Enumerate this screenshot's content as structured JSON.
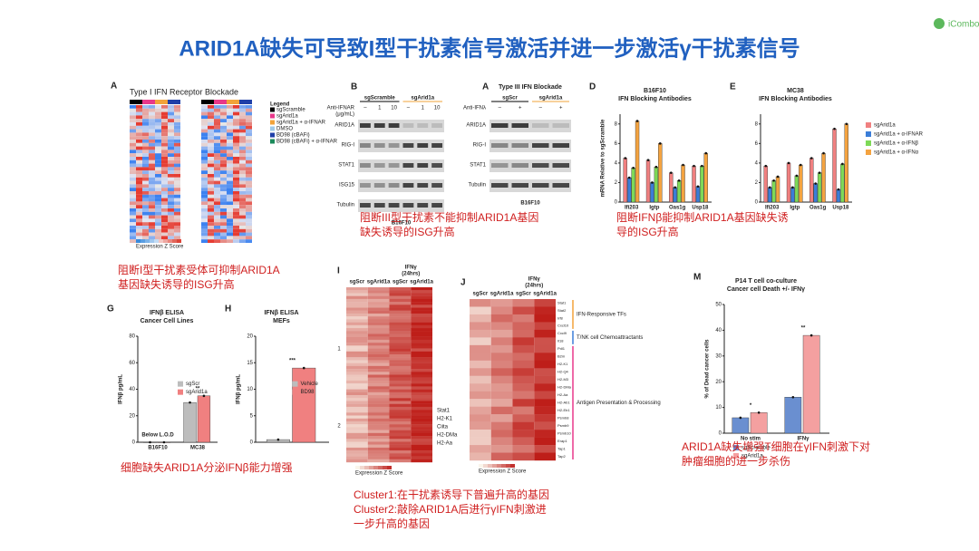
{
  "title": "ARID1A缺失可导致I型干扰素信号激活并进一步激活γ干扰素信号",
  "logo": "iCombo",
  "panelA": {
    "letter": "A",
    "title": "Type I IFN Receptor Blockade",
    "legend_title": "Legend",
    "legend": [
      "sgScramble",
      "sgArid1a",
      "sgArid1a + α-IFNAR",
      "DMSO",
      "BD98 (cBAFi)",
      "BD98 (cBAFi) + α-IFNAR"
    ],
    "legend_colors": [
      "#000000",
      "#e8388a",
      "#f2a33a",
      "#9ec9e8",
      "#1f3fa8",
      "#1a8a5a"
    ],
    "scale_label": "Expression Z Score",
    "caption": [
      "阻断I型干扰素受体可抑制ARID1A",
      "基因缺失诱导的ISG升高"
    ]
  },
  "panelB": {
    "letter": "B",
    "groups": [
      "sgScramble",
      "sgArid1a"
    ],
    "treatment": "Anti-IFNAR",
    "unit": "(μg/mL)",
    "doses": [
      "–",
      "1",
      "10",
      "–",
      "1",
      "10"
    ],
    "rows": [
      "ARID1A",
      "RIG-I",
      "STAT1",
      "ISG15",
      "Tubulin"
    ],
    "cell": "B16F10",
    "caption": [
      "阻断III型干扰素不能抑制ARID1A基因",
      "缺失诱导的ISG升高"
    ]
  },
  "panelC": {
    "letter": "A",
    "title": "Type III IFN Blockade",
    "groups": [
      "sgScr",
      "sgArid1a"
    ],
    "treatment": "Anti-IFNλ",
    "doses": [
      "–",
      "+",
      "–",
      "+"
    ],
    "rows": [
      "ARID1A",
      "RIG-I",
      "STAT1",
      "Tubulin"
    ],
    "cell": "B16F10"
  },
  "panelD": {
    "letter": "D",
    "type": "bar",
    "title": [
      "B16F10",
      "IFN Blocking Antibodies"
    ],
    "ylabel": "mRNA Relative to sgScramble",
    "categories": [
      "Ifi203",
      "Igtp",
      "Oas1g",
      "Usp18"
    ],
    "ylim": [
      0,
      9
    ],
    "yticks": [
      0,
      2,
      4,
      6,
      8
    ],
    "legend": "outside-right",
    "series": [
      {
        "name": "sgArid1a",
        "color": "#f08080",
        "values": [
          4.5,
          4.3,
          3.0,
          3.7
        ]
      },
      {
        "name": "sgArid1a + α-IFNAR",
        "color": "#3b7dd8",
        "values": [
          2.5,
          2.0,
          1.5,
          1.6
        ]
      },
      {
        "name": "sgArid1a + α-IFNβ",
        "color": "#7ed957",
        "values": [
          3.5,
          3.6,
          2.2,
          3.7
        ]
      },
      {
        "name": "sgArid1a + α-IFNα",
        "color": "#f4a340",
        "values": [
          8.3,
          6.0,
          3.8,
          5.0
        ]
      }
    ]
  },
  "panelE": {
    "letter": "E",
    "type": "bar",
    "title": [
      "MC38",
      "IFN Blocking Antibodies"
    ],
    "categories": [
      "Ifi203",
      "Igtp",
      "Oas1g",
      "Usp18"
    ],
    "ylim": [
      0,
      9
    ],
    "yticks": [
      0,
      2,
      4,
      6,
      8
    ],
    "series": [
      {
        "color": "#f08080",
        "values": [
          3.7,
          4.0,
          4.5,
          7.5
        ]
      },
      {
        "color": "#3b7dd8",
        "values": [
          1.5,
          1.5,
          1.9,
          1.3
        ]
      },
      {
        "color": "#7ed957",
        "values": [
          2.2,
          2.7,
          3.0,
          3.9
        ]
      },
      {
        "color": "#f4a340",
        "values": [
          2.6,
          3.8,
          5.0,
          8.0
        ]
      }
    ]
  },
  "captionDE": [
    "阻断IFNβ能抑制ARID1A基因缺失诱",
    "导的ISG升高"
  ],
  "panelG": {
    "letter": "G",
    "type": "bar",
    "title": [
      "IFNβ ELISA",
      "Cancer Cell Lines"
    ],
    "ylabel": "IFNβ pg/mL",
    "categories": [
      "B16F10",
      "MC38"
    ],
    "ylim": [
      0,
      80
    ],
    "yticks": [
      0,
      20,
      40,
      60,
      80
    ],
    "legend": "right",
    "annotations": [
      "Below L.O.D",
      "**"
    ],
    "series": [
      {
        "name": "sgScr",
        "color": "#bdbdbd",
        "values": [
          0,
          30
        ]
      },
      {
        "name": "sgArid1a",
        "color": "#f08080",
        "values": [
          0,
          35
        ]
      }
    ],
    "caption": "细胞缺失ARID1A分泌IFNβ能力增强"
  },
  "panelH": {
    "letter": "H",
    "type": "bar",
    "title": [
      "IFNβ ELISA",
      "MEFs"
    ],
    "ylabel": "IFNβ pg/mL",
    "categories": [
      null
    ],
    "ylim": [
      0,
      20
    ],
    "yticks": [
      0,
      5,
      10,
      15,
      20
    ],
    "legend": "right",
    "annotations": [
      "***"
    ],
    "series": [
      {
        "name": "Vehicle",
        "color": "#bdbdbd",
        "values": [
          0.5
        ]
      },
      {
        "name": "BD98",
        "color": "#f08080",
        "values": [
          14
        ]
      }
    ]
  },
  "panelI": {
    "letter": "I",
    "header": [
      "IFNγ",
      "(24hrs)"
    ],
    "columns": [
      "sgScr",
      "sgArid1a",
      "sgScr",
      "sgArid1a"
    ],
    "clusters": [
      "1",
      "2"
    ],
    "genes": [
      "Stat1",
      "H2-K1",
      "Ciita",
      "H2-DMa",
      "H2-Aa"
    ],
    "scale_label": "Expression Z Score"
  },
  "panelJ": {
    "letter": "J",
    "header": [
      "IFNγ",
      "(24hrs)"
    ],
    "columns": [
      "sgScr",
      "sgArid1a",
      "sgScr",
      "sgArid1a"
    ],
    "genes": [
      "Stat1",
      "Stat2",
      "Irf8",
      "Cxcl10",
      "Cxcl9",
      "Il18",
      "Pdl1",
      "B2m",
      "H2-K1",
      "H2-Q4",
      "H2-M3",
      "H2-DMa",
      "H2-Aa",
      "H2-Ab1",
      "H2-Eb1",
      "Psmb8",
      "Psmb9",
      "Psmb10",
      "Erap1",
      "Tap1",
      "Tap2"
    ],
    "groups": [
      "IFN-Responsive TFs",
      "T/NK cell Chemoattractants",
      "Antigen Presentation & Processing"
    ],
    "scale_label": "Expression Z Score"
  },
  "captionIJ": [
    "Cluster1:在干扰素诱导下普遍升高的基因",
    "Cluster2:敲除ARID1A后进行γIFN刺激进",
    "一步升高的基因"
  ],
  "panelM": {
    "letter": "M",
    "type": "bar",
    "title": [
      "P14 T cell co-culture",
      "Cancer cell Death +/- IFNγ"
    ],
    "ylabel": "% of Dead cancer cells",
    "categories": [
      "No stim",
      "IFNγ"
    ],
    "ylim": [
      0,
      50
    ],
    "yticks": [
      0,
      10,
      20,
      30,
      40,
      50
    ],
    "legend": "below",
    "annotations": [
      "*",
      "**"
    ],
    "series": [
      {
        "name": "sgScramble",
        "color": "#6a8fd0",
        "values": [
          6,
          14
        ]
      },
      {
        "name": "sgArid1a",
        "color": "#f4a0a0",
        "values": [
          8,
          38
        ]
      }
    ],
    "caption": [
      "ARID1A缺失增强T细胞在γIFN刺激下对",
      "肿瘤细胞的进一步杀伤"
    ]
  }
}
